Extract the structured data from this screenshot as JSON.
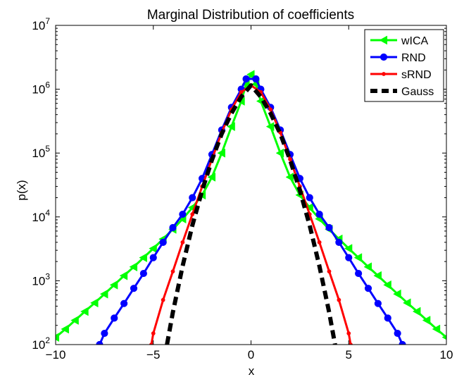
{
  "chart_data": {
    "type": "line",
    "title": "Marginal Distribution of coefficients",
    "xlabel": "x",
    "ylabel": "p(x)",
    "xlim": [
      -10,
      10
    ],
    "ylim": [
      100,
      10000000
    ],
    "yscale": "log",
    "xticks": [
      -10,
      -5,
      0,
      5,
      10
    ],
    "xtick_labels": [
      "−10",
      "−5",
      "0",
      "5",
      "10"
    ],
    "yticks": [
      100,
      1000,
      10000,
      100000,
      1000000,
      10000000
    ],
    "ytick_labels": [
      {
        "base": "10",
        "exp": "2"
      },
      {
        "base": "10",
        "exp": "3"
      },
      {
        "base": "10",
        "exp": "4"
      },
      {
        "base": "10",
        "exp": "5"
      },
      {
        "base": "10",
        "exp": "6"
      },
      {
        "base": "10",
        "exp": "7"
      }
    ],
    "grid": false,
    "legend_position": "top-right",
    "series": [
      {
        "name": "wICA",
        "color": "#00ff00",
        "marker": "triangle-left",
        "line_style": "solid",
        "x": [
          -10,
          -9.5,
          -9,
          -8.5,
          -8,
          -7.5,
          -7,
          -6.5,
          -6,
          -5.5,
          -5,
          -4.5,
          -4,
          -3.5,
          -3,
          -2.5,
          -2,
          -1.5,
          -1,
          -0.5,
          -0.25,
          0,
          0.25,
          0.5,
          1,
          1.5,
          2,
          2.5,
          3,
          3.5,
          4,
          4.5,
          5,
          5.5,
          6,
          6.5,
          7,
          7.5,
          8,
          8.5,
          9,
          9.5,
          10
        ],
        "y": [
          130,
          175,
          240,
          330,
          450,
          620,
          860,
          1200,
          1650,
          2300,
          3200,
          4500,
          6400,
          9300,
          14000,
          22000,
          42000,
          100000,
          260000,
          650000,
          1200000,
          1700000,
          1200000,
          650000,
          260000,
          100000,
          42000,
          22000,
          14000,
          9300,
          6400,
          4500,
          3200,
          2300,
          1650,
          1200,
          860,
          620,
          450,
          330,
          240,
          175,
          130
        ]
      },
      {
        "name": "RND",
        "color": "#0000ff",
        "marker": "circle",
        "line_style": "solid",
        "x": [
          -7.75,
          -7.5,
          -7,
          -6.5,
          -6,
          -5.5,
          -5,
          -4.5,
          -4,
          -3.5,
          -3,
          -2.5,
          -2,
          -1.5,
          -1,
          -0.5,
          -0.25,
          0.25,
          0.5,
          1,
          1.5,
          2,
          2.5,
          3,
          3.5,
          4,
          4.5,
          5,
          5.5,
          6,
          6.5,
          7,
          7.5,
          7.75
        ],
        "y": [
          100,
          150,
          260,
          440,
          760,
          1300,
          2300,
          4000,
          6800,
          11000,
          20000,
          40000,
          95000,
          230000,
          520000,
          1000000,
          1450000,
          1450000,
          1000000,
          520000,
          230000,
          95000,
          40000,
          20000,
          11000,
          6800,
          4000,
          2300,
          1300,
          760,
          440,
          260,
          150,
          100
        ]
      },
      {
        "name": "sRND",
        "color": "#ff0000",
        "marker": "dot",
        "line_style": "solid",
        "x": [
          -5.1,
          -5,
          -4.5,
          -4,
          -3.5,
          -3,
          -2.5,
          -2,
          -1.5,
          -1,
          -0.5,
          0,
          0.5,
          1,
          1.5,
          2,
          2.5,
          3,
          3.5,
          4,
          4.5,
          5,
          5.1
        ],
        "y": [
          100,
          150,
          500,
          1400,
          4000,
          11000,
          30000,
          80000,
          210000,
          480000,
          900000,
          1150000,
          900000,
          480000,
          210000,
          80000,
          30000,
          11000,
          4000,
          1400,
          500,
          150,
          100
        ]
      },
      {
        "name": "Gauss",
        "color": "#000000",
        "marker": "none",
        "line_style": "dashed",
        "x": [
          -4.3,
          -4,
          -3.5,
          -3,
          -2.5,
          -2,
          -1.5,
          -1,
          -0.5,
          0,
          0.5,
          1,
          1.5,
          2,
          2.5,
          3,
          3.5,
          4,
          4.3
        ],
        "y": [
          100,
          320,
          1700,
          7400,
          26000,
          78000,
          200000,
          420000,
          760000,
          1150000,
          760000,
          420000,
          200000,
          78000,
          26000,
          7400,
          1700,
          320,
          100
        ]
      }
    ]
  }
}
